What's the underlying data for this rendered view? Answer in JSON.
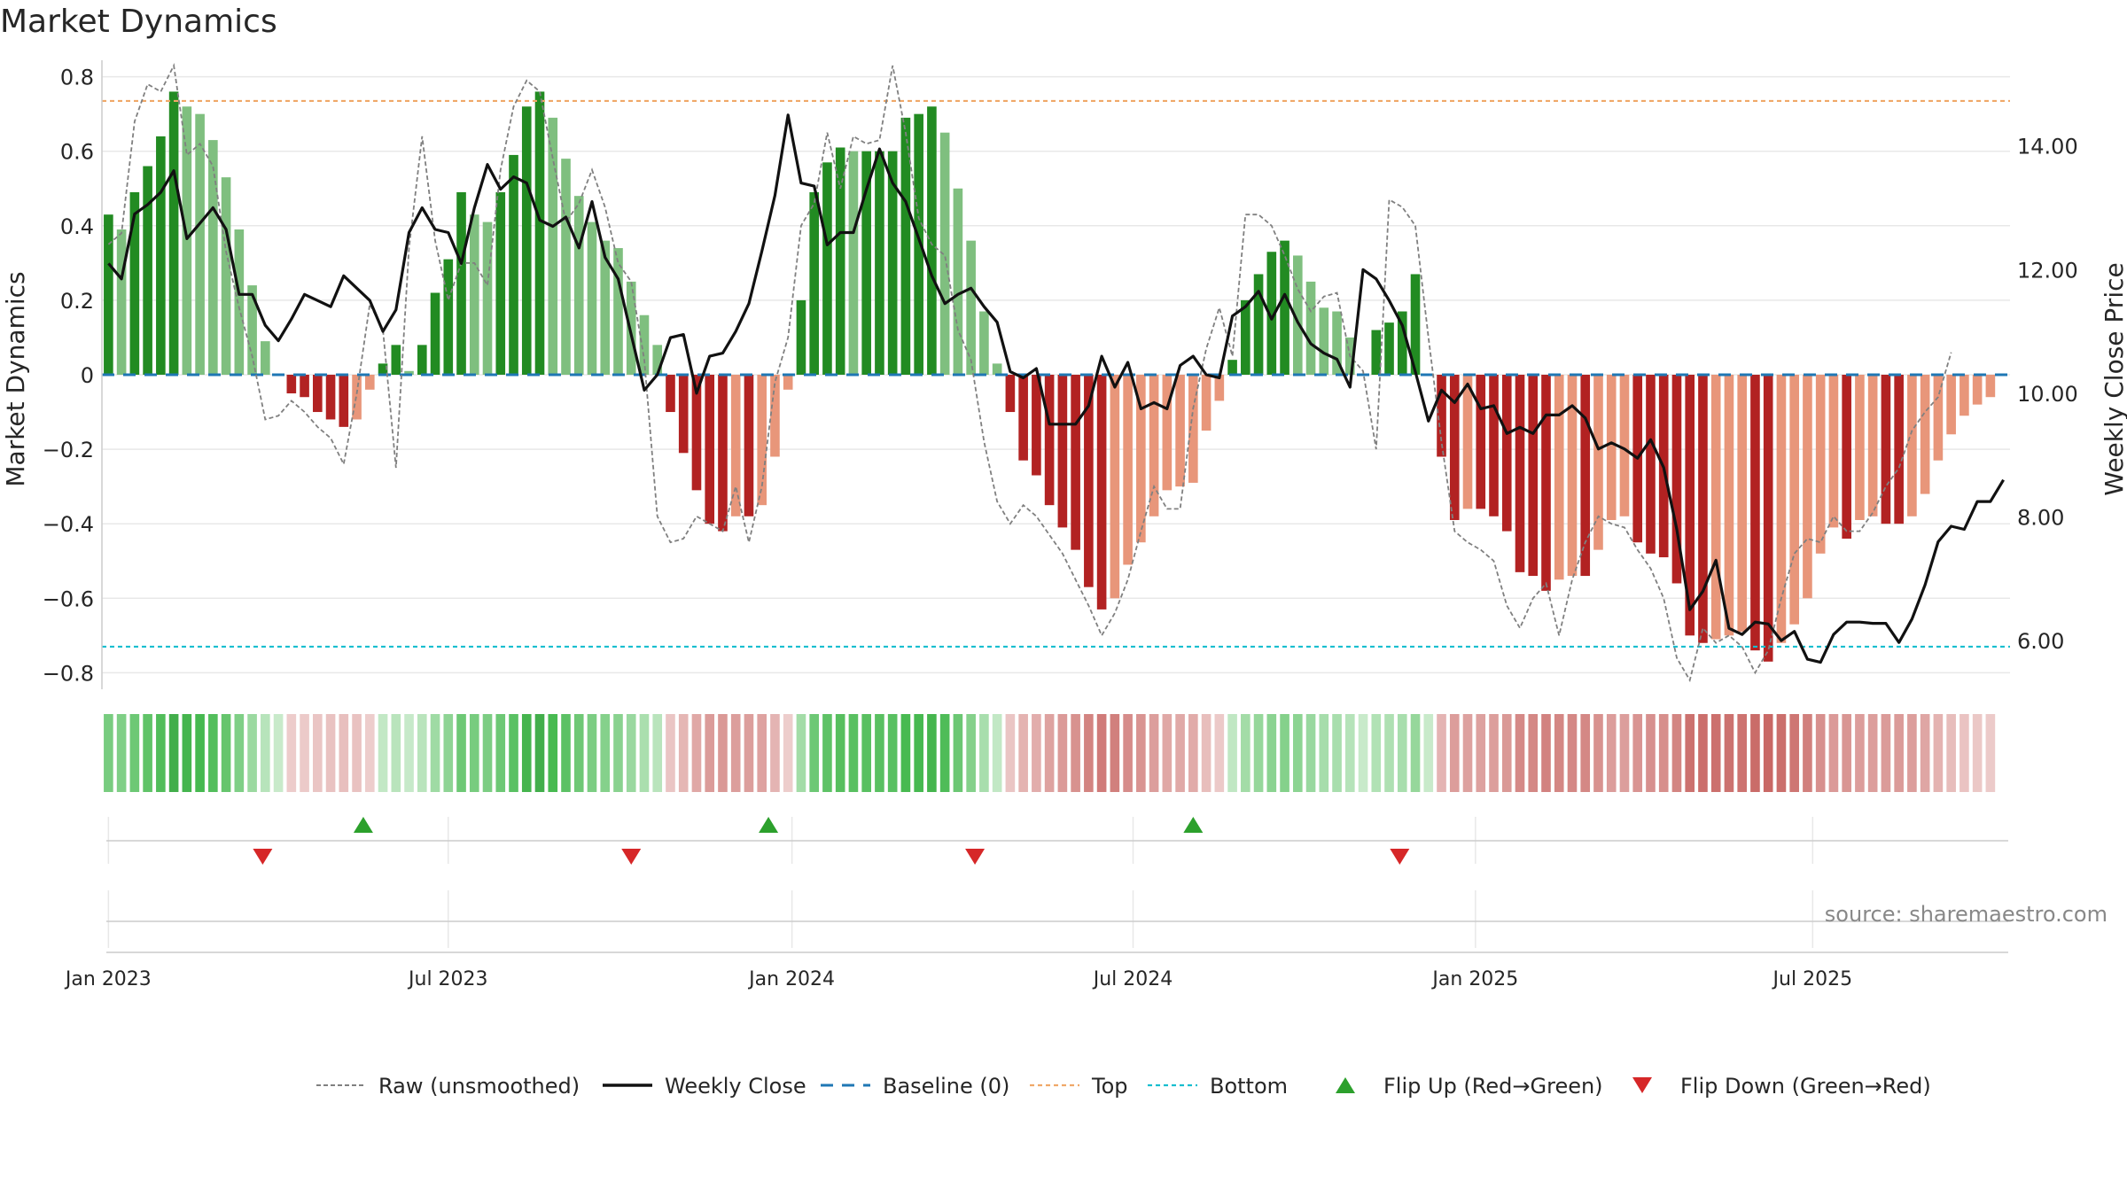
{
  "chart_data": {
    "type": "bar",
    "title": "Market Dynamics",
    "ylabel_left": "Market Dynamics",
    "ylabel_right": "Weekly Close Price",
    "ylim_left": [
      -0.83,
      0.83
    ],
    "ylim_right": [
      5.3,
      15.3
    ],
    "yticks_left": [
      {
        "value": 0.8,
        "label": "0.8"
      },
      {
        "value": 0.6,
        "label": "0.6"
      },
      {
        "value": 0.4,
        "label": "0.4"
      },
      {
        "value": 0.2,
        "label": "0.2"
      },
      {
        "value": 0,
        "label": "0"
      },
      {
        "value": -0.2,
        "label": "−0.2"
      },
      {
        "value": -0.4,
        "label": "−0.4"
      },
      {
        "value": -0.6,
        "label": "−0.6"
      },
      {
        "value": -0.8,
        "label": "−0.8"
      }
    ],
    "yticks_right": [
      {
        "value": 14,
        "label": "14.00"
      },
      {
        "value": 12,
        "label": "12.00"
      },
      {
        "value": 10,
        "label": "10.00"
      },
      {
        "value": 8,
        "label": "8.00"
      },
      {
        "value": 6,
        "label": "6.00"
      }
    ],
    "x_start_label": "Jan 2023",
    "x_weeks": 146,
    "xticks": [
      {
        "week": 0,
        "label": "Jan 2023"
      },
      {
        "week": 26,
        "label": "Jul 2023"
      },
      {
        "week": 52.3,
        "label": "Jan 2024"
      },
      {
        "week": 78.4,
        "label": "Jul 2024"
      },
      {
        "week": 104.6,
        "label": "Jan 2025"
      },
      {
        "week": 130.4,
        "label": "Jul 2025"
      }
    ],
    "top_level": 0.735,
    "bottom_level": -0.73,
    "baseline": 0,
    "series": [
      {
        "name": "Market Dynamics (smoothed)",
        "values": [
          0.43,
          0.39,
          0.49,
          0.56,
          0.64,
          0.76,
          0.72,
          0.7,
          0.63,
          0.53,
          0.39,
          0.24,
          0.09,
          0,
          -0.05,
          -0.06,
          -0.1,
          -0.12,
          -0.14,
          -0.12,
          -0.04,
          0.03,
          0.08,
          0.01,
          0.08,
          0.22,
          0.31,
          0.49,
          0.43,
          0.41,
          0.49,
          0.59,
          0.72,
          0.76,
          0.69,
          0.58,
          0.48,
          0.41,
          0.36,
          0.34,
          0.25,
          0.16,
          0.08,
          -0.1,
          -0.21,
          -0.31,
          -0.4,
          -0.42,
          -0.38,
          -0.38,
          -0.35,
          -0.22,
          -0.04,
          0.2,
          0.49,
          0.57,
          0.61,
          0.6,
          0.6,
          0.6,
          0.6,
          0.69,
          0.7,
          0.72,
          0.65,
          0.5,
          0.36,
          0.17,
          0.03,
          -0.1,
          -0.23,
          -0.27,
          -0.35,
          -0.41,
          -0.47,
          -0.57,
          -0.63,
          -0.6,
          -0.51,
          -0.45,
          -0.38,
          -0.31,
          -0.3,
          -0.29,
          -0.15,
          -0.07,
          0.04,
          0.2,
          0.27,
          0.33,
          0.36,
          0.32,
          0.25,
          0.18,
          0.17,
          0.1,
          0,
          0.12,
          0.14,
          0.17,
          0.27,
          0,
          -0.22,
          -0.39,
          -0.36,
          -0.36,
          -0.38,
          -0.42,
          -0.53,
          -0.54,
          -0.58,
          -0.55,
          -0.54,
          -0.54,
          -0.47,
          -0.39,
          -0.38,
          -0.45,
          -0.48,
          -0.49,
          -0.56,
          -0.7,
          -0.72,
          -0.71,
          -0.7,
          -0.69,
          -0.74,
          -0.77,
          -0.72,
          -0.67,
          -0.6,
          -0.48,
          -0.41,
          -0.44,
          -0.39,
          -0.38,
          -0.4,
          -0.4,
          -0.38,
          -0.32,
          -0.23,
          -0.16,
          -0.11,
          -0.08,
          -0.06
        ]
      },
      {
        "name": "Raw (unsmoothed)",
        "values": [
          0.35,
          0.38,
          0.68,
          0.78,
          0.76,
          0.83,
          0.59,
          0.62,
          0.56,
          0.33,
          0.18,
          0.05,
          -0.12,
          -0.11,
          -0.07,
          -0.1,
          -0.14,
          -0.17,
          -0.24,
          -0.05,
          0.19,
          0.12,
          -0.25,
          0.34,
          0.64,
          0.36,
          0.2,
          0.3,
          0.3,
          0.24,
          0.55,
          0.72,
          0.79,
          0.76,
          0.58,
          0.41,
          0.46,
          0.55,
          0.45,
          0.3,
          0.25,
          0.04,
          -0.38,
          -0.45,
          -0.44,
          -0.38,
          -0.4,
          -0.42,
          -0.3,
          -0.45,
          -0.3,
          -0.02,
          0.1,
          0.4,
          0.46,
          0.65,
          0.5,
          0.64,
          0.62,
          0.63,
          0.83,
          0.65,
          0.42,
          0.35,
          0.32,
          0.12,
          0.04,
          -0.18,
          -0.34,
          -0.4,
          -0.35,
          -0.38,
          -0.43,
          -0.48,
          -0.55,
          -0.62,
          -0.7,
          -0.64,
          -0.55,
          -0.42,
          -0.3,
          -0.36,
          -0.36,
          -0.09,
          0.07,
          0.18,
          0.05,
          0.43,
          0.43,
          0.4,
          0.32,
          0.23,
          0.17,
          0.21,
          0.22,
          0.05,
          0.01,
          -0.2,
          0.47,
          0.45,
          0.4,
          0.1,
          -0.18,
          -0.42,
          -0.45,
          -0.47,
          -0.5,
          -0.62,
          -0.68,
          -0.6,
          -0.56,
          -0.7,
          -0.55,
          -0.45,
          -0.38,
          -0.4,
          -0.41,
          -0.47,
          -0.52,
          -0.6,
          -0.76,
          -0.82,
          -0.68,
          -0.72,
          -0.7,
          -0.73,
          -0.8,
          -0.74,
          -0.6,
          -0.48,
          -0.44,
          -0.45,
          -0.38,
          -0.42,
          -0.42,
          -0.37,
          -0.3,
          -0.25,
          -0.15,
          -0.1,
          -0.06,
          0.06
        ]
      },
      {
        "name": "Weekly Close",
        "values": [
          12.1,
          11.85,
          12.9,
          13.05,
          13.25,
          13.6,
          12.5,
          12.75,
          13.0,
          12.65,
          11.6,
          11.6,
          11.1,
          10.85,
          11.2,
          11.6,
          11.5,
          11.4,
          11.9,
          11.7,
          11.5,
          11.0,
          11.35,
          12.6,
          13.0,
          12.65,
          12.6,
          12.1,
          13.0,
          13.7,
          13.3,
          13.5,
          13.4,
          12.8,
          12.7,
          12.85,
          12.35,
          13.1,
          12.2,
          11.85,
          10.95,
          10.05,
          10.3,
          10.9,
          10.95,
          10.0,
          10.6,
          10.65,
          11.0,
          11.45,
          12.3,
          13.2,
          14.5,
          13.4,
          13.35,
          12.4,
          12.6,
          12.6,
          13.3,
          13.95,
          13.4,
          13.1,
          12.5,
          11.9,
          11.45,
          11.6,
          11.7,
          11.4,
          11.15,
          10.35,
          10.25,
          10.4,
          9.5,
          9.5,
          9.5,
          9.8,
          10.6,
          10.1,
          10.5,
          9.75,
          9.85,
          9.75,
          10.45,
          10.6,
          10.3,
          10.25,
          11.25,
          11.4,
          11.65,
          11.2,
          11.6,
          11.15,
          10.8,
          10.65,
          10.55,
          10.1,
          12.0,
          11.85,
          11.5,
          11.1,
          10.35,
          9.55,
          10.05,
          9.85,
          10.15,
          9.75,
          9.8,
          9.35,
          9.45,
          9.35,
          9.65,
          9.65,
          9.8,
          9.6,
          9.1,
          9.2,
          9.1,
          8.95,
          9.25,
          8.8,
          7.8,
          6.5,
          6.8,
          7.3,
          6.2,
          6.1,
          6.3,
          6.27,
          6.0,
          6.15,
          5.7,
          5.65,
          6.1,
          6.3,
          6.3,
          6.28,
          6.28,
          5.97,
          6.35,
          6.9,
          7.6,
          7.85,
          7.8,
          8.25,
          8.25,
          8.6
        ]
      }
    ],
    "flip_up_weeks": [
      19.5,
      50.5,
      83
    ],
    "flip_down_weeks": [
      11.8,
      40,
      66.3,
      98.8
    ],
    "legend": [
      {
        "label": "Raw (unsmoothed)",
        "style": "dash-gray"
      },
      {
        "label": "Weekly Close",
        "style": "solid-black"
      },
      {
        "label": "Baseline (0)",
        "style": "dash-blue"
      },
      {
        "label": "Top",
        "style": "dash-orange"
      },
      {
        "label": "Bottom",
        "style": "dash-cyan"
      },
      {
        "label": "Flip Up (Red→Green)",
        "style": "triangle-up"
      },
      {
        "label": "Flip Down (Green→Red)",
        "style": "triangle-down"
      }
    ],
    "legend_position": "bottom-center",
    "source_note": "source: sharemaestro.com"
  },
  "colors": {
    "strong_green": "#228b22",
    "light_green": "#7fbf7f",
    "strong_red": "#b22222",
    "light_red": "#e8967a",
    "raw": "#808080",
    "close": "#111111",
    "baseline": "#1f77b4",
    "top": "#f0a868",
    "bottom": "#17becf",
    "flip_up": "#2ca02c",
    "flip_down": "#d62728",
    "grid": "#e8e8e8",
    "text": "#262626",
    "source": "#888888"
  }
}
